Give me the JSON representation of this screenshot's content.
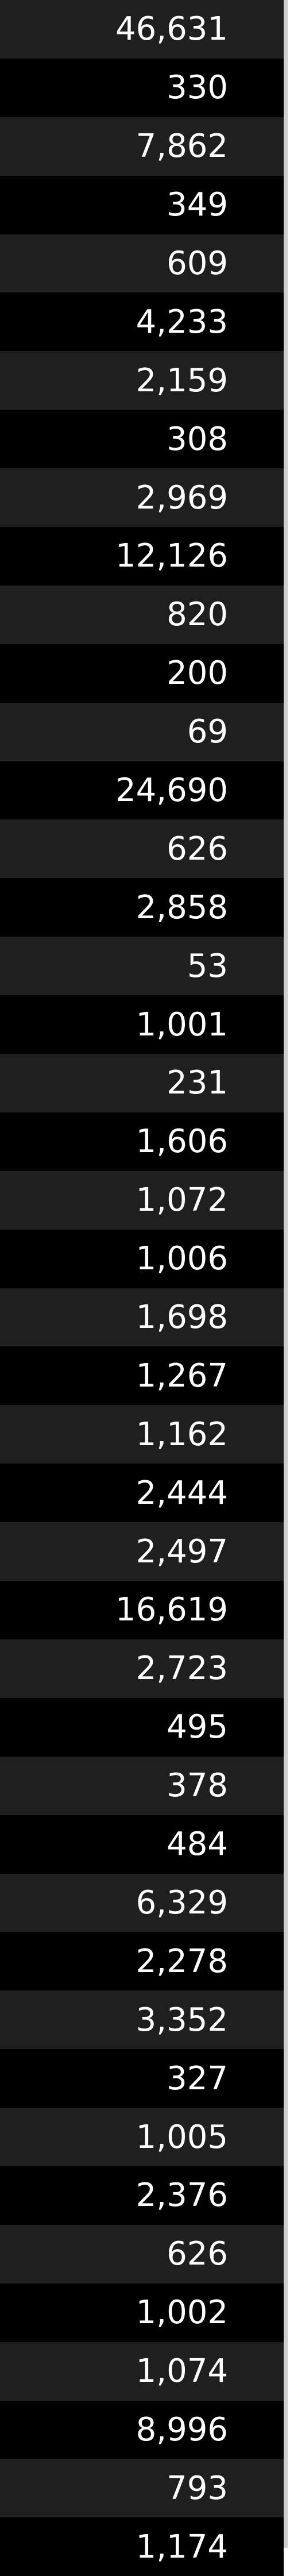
{
  "table": {
    "values": [
      "46,631",
      "330",
      "7,862",
      "349",
      "609",
      "4,233",
      "2,159",
      "308",
      "2,969",
      "12,126",
      "820",
      "200",
      "69",
      "24,690",
      "626",
      "2,858",
      "53",
      "1,001",
      "231",
      "1,606",
      "1,072",
      "1,006",
      "1,698",
      "1,267",
      "1,162",
      "2,444",
      "2,497",
      "16,619",
      "2,723",
      "495",
      "378",
      "484",
      "6,329",
      "2,278",
      "3,352",
      "327",
      "1,005",
      "2,376",
      "626",
      "1,002",
      "1,074",
      "8,996",
      "793",
      "1,174"
    ]
  },
  "colors": {
    "row_dark": "#000000",
    "row_light": "#1f1f1f",
    "text": "#ffffff",
    "border": "#cfcfcf"
  }
}
